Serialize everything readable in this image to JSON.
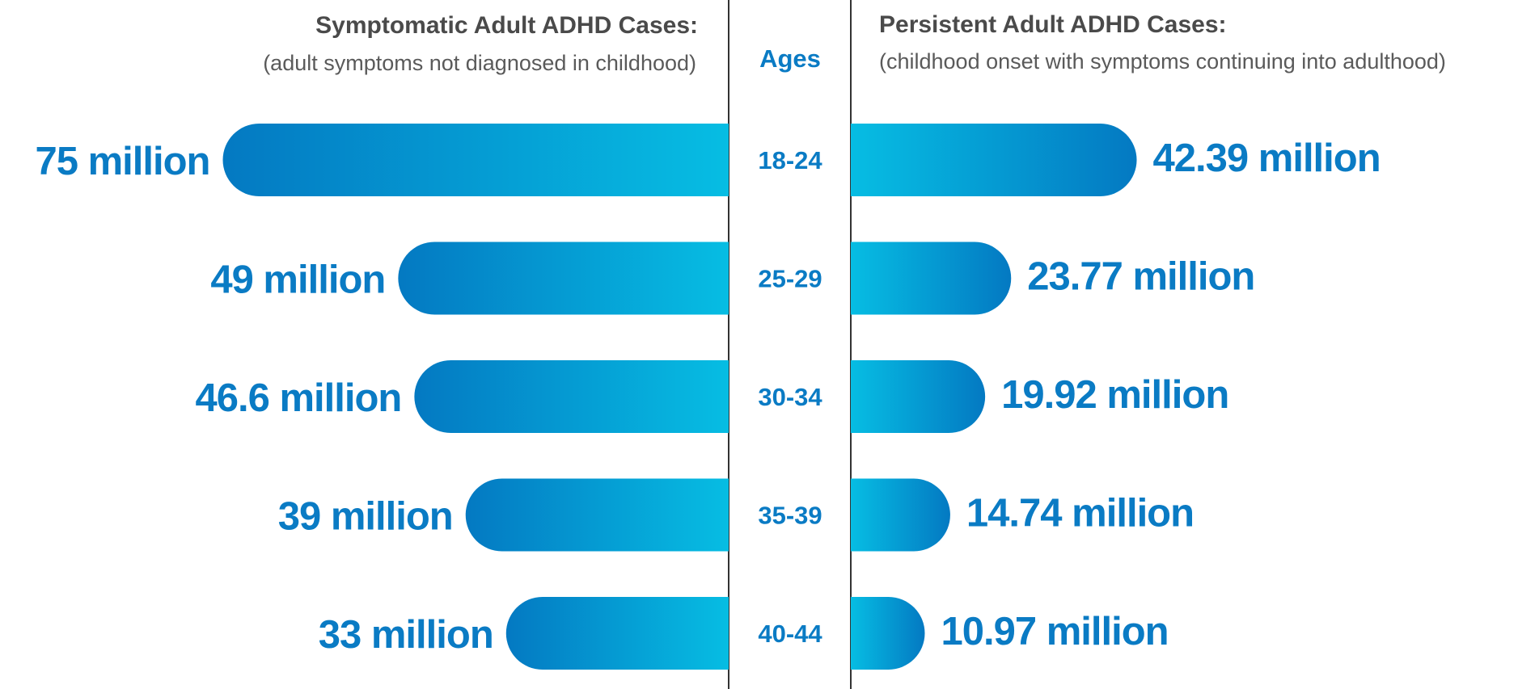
{
  "chart_data": {
    "type": "bar",
    "orientation": "horizontal-diverging",
    "categories_title": "Ages",
    "categories": [
      "18-24",
      "25-29",
      "30-34",
      "35-39",
      "40-44"
    ],
    "series": [
      {
        "name": "Symptomatic Adult ADHD Cases:",
        "subtitle": "(adult symptoms not diagnosed in childhood)",
        "side": "left",
        "values": [
          75,
          49,
          46.6,
          39,
          33
        ],
        "labels": [
          "75 million",
          "49 million",
          "46.6 million",
          "39 million",
          "33 million"
        ]
      },
      {
        "name": "Persistent Adult ADHD Cases:",
        "subtitle": "(childhood onset with symptoms continuing into adulthood)",
        "side": "right",
        "values": [
          42.39,
          23.77,
          19.92,
          14.74,
          10.97
        ],
        "labels": [
          "42.39 million",
          "23.77 million",
          "19.92 million",
          "14.74 million",
          "10.97 million"
        ]
      }
    ],
    "colors": {
      "bar_dark": "#0479c2",
      "bar_light": "#06bde3",
      "label": "#0a7bc4",
      "heading": "#4a4a4a",
      "divider": "#333333"
    },
    "legend": "none",
    "grid": false
  }
}
